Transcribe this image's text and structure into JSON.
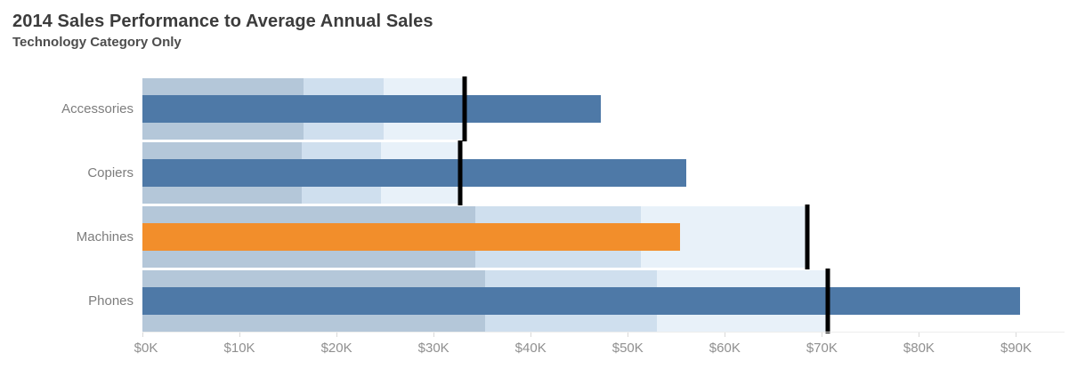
{
  "header": {
    "title": "2014 Sales Performance to Average Annual Sales",
    "subtitle": "Technology Category Only"
  },
  "colors": {
    "bar_blue": "#4e79a7",
    "bar_orange_highlight": "#f28e2b",
    "band_50pct": "#b4c7d9",
    "band_75pct": "#cfdfee",
    "band_100pct": "#e8f1f9",
    "reference_line": "#000000",
    "title_text": "#3c3c3c",
    "subtitle_text": "#4d4d4d",
    "category_text": "#7d7d7d",
    "axis_text": "#8f8f8f"
  },
  "chart_data": {
    "type": "bar",
    "subtype": "bullet",
    "title": "2014 Sales Performance to Average Annual Sales",
    "subtitle": "Technology Category Only",
    "xlabel": "",
    "ylabel": "",
    "value_unit": "USD thousands",
    "categories": [
      "Accessories",
      "Copiers",
      "Machines",
      "Phones"
    ],
    "series": [
      {
        "name": "2014 Sales",
        "values": [
          47.0,
          55.8,
          55.1,
          90.0
        ]
      },
      {
        "name": "Average Annual Sales (reference line)",
        "values": [
          33.0,
          32.6,
          68.2,
          70.3
        ]
      }
    ],
    "bar_colors": [
      "#4e79a7",
      "#4e79a7",
      "#f28e2b",
      "#4e79a7"
    ],
    "band_fractions_of_reference": [
      0.5,
      0.75,
      1.0
    ],
    "x_ticks": [
      "$0K",
      "$10K",
      "$20K",
      "$30K",
      "$40K",
      "$50K",
      "$60K",
      "$70K",
      "$80K",
      "$90K"
    ],
    "x_tick_values": [
      0,
      10,
      20,
      30,
      40,
      50,
      60,
      70,
      80,
      90
    ],
    "xlim": [
      0,
      95
    ],
    "grid": false,
    "legend": false
  }
}
